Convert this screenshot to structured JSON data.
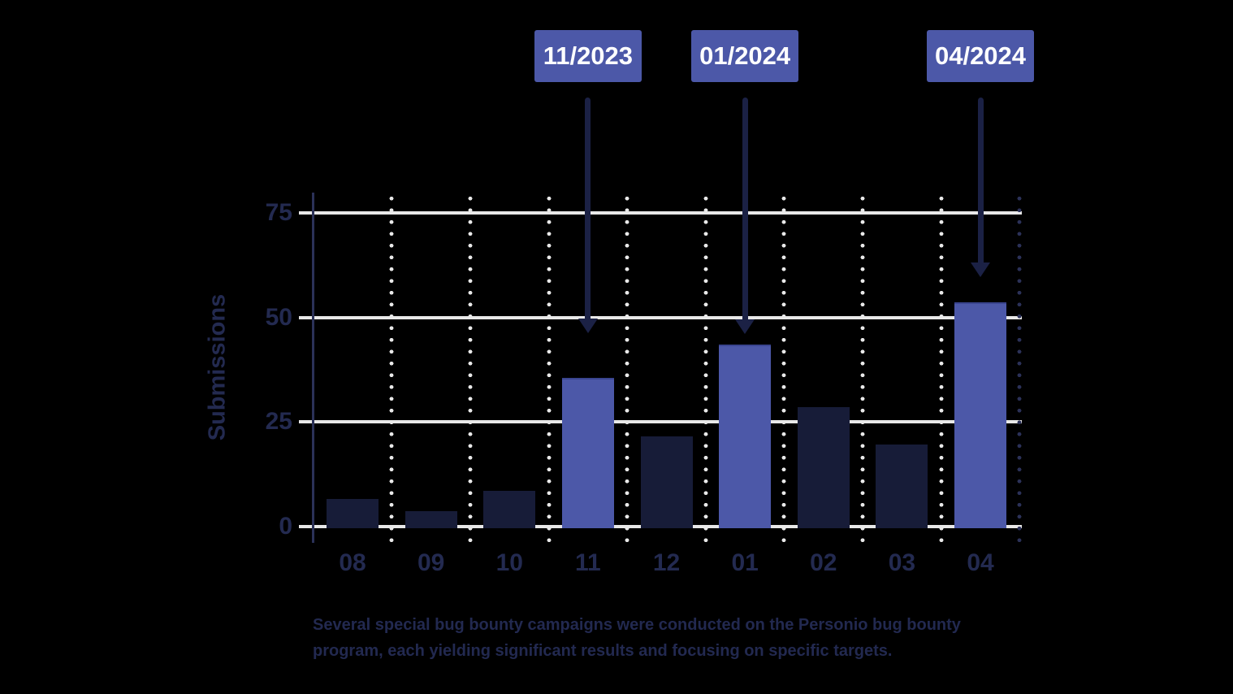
{
  "colors": {
    "background": "#000000",
    "accent": "#4C58A8",
    "bar_dark": "#171C38",
    "grid_white": "#E8E8E8",
    "axis_navy": "#2B3158",
    "arrow_navy": "#1B2145",
    "text_navy": "#232A50",
    "caption_navy": "#222950",
    "callout_text": "#FFFFFF"
  },
  "chart_data": {
    "type": "bar",
    "title": "",
    "ylabel": "Submissions",
    "xlabel": "",
    "categories": [
      "08",
      "09",
      "10",
      "11",
      "12",
      "01",
      "02",
      "03",
      "04"
    ],
    "values": [
      7,
      4,
      9,
      36,
      22,
      44,
      29,
      20,
      54
    ],
    "highlighted_categories": [
      "11",
      "01",
      "04"
    ],
    "yticks": [
      0,
      25,
      50,
      75
    ],
    "ylim": [
      0,
      80
    ],
    "legend": "none",
    "grid": {
      "horizontal": "solid",
      "vertical": "dotted"
    },
    "annotations": [
      {
        "label": "11/2023",
        "category": "11"
      },
      {
        "label": "01/2024",
        "category": "01"
      },
      {
        "label": "04/2024",
        "category": "04"
      }
    ]
  },
  "caption": {
    "lines": [
      "Several special bug bounty campaigns were conducted on the Personio bug bounty",
      "program, each yielding significant results and focusing on specific targets."
    ]
  }
}
